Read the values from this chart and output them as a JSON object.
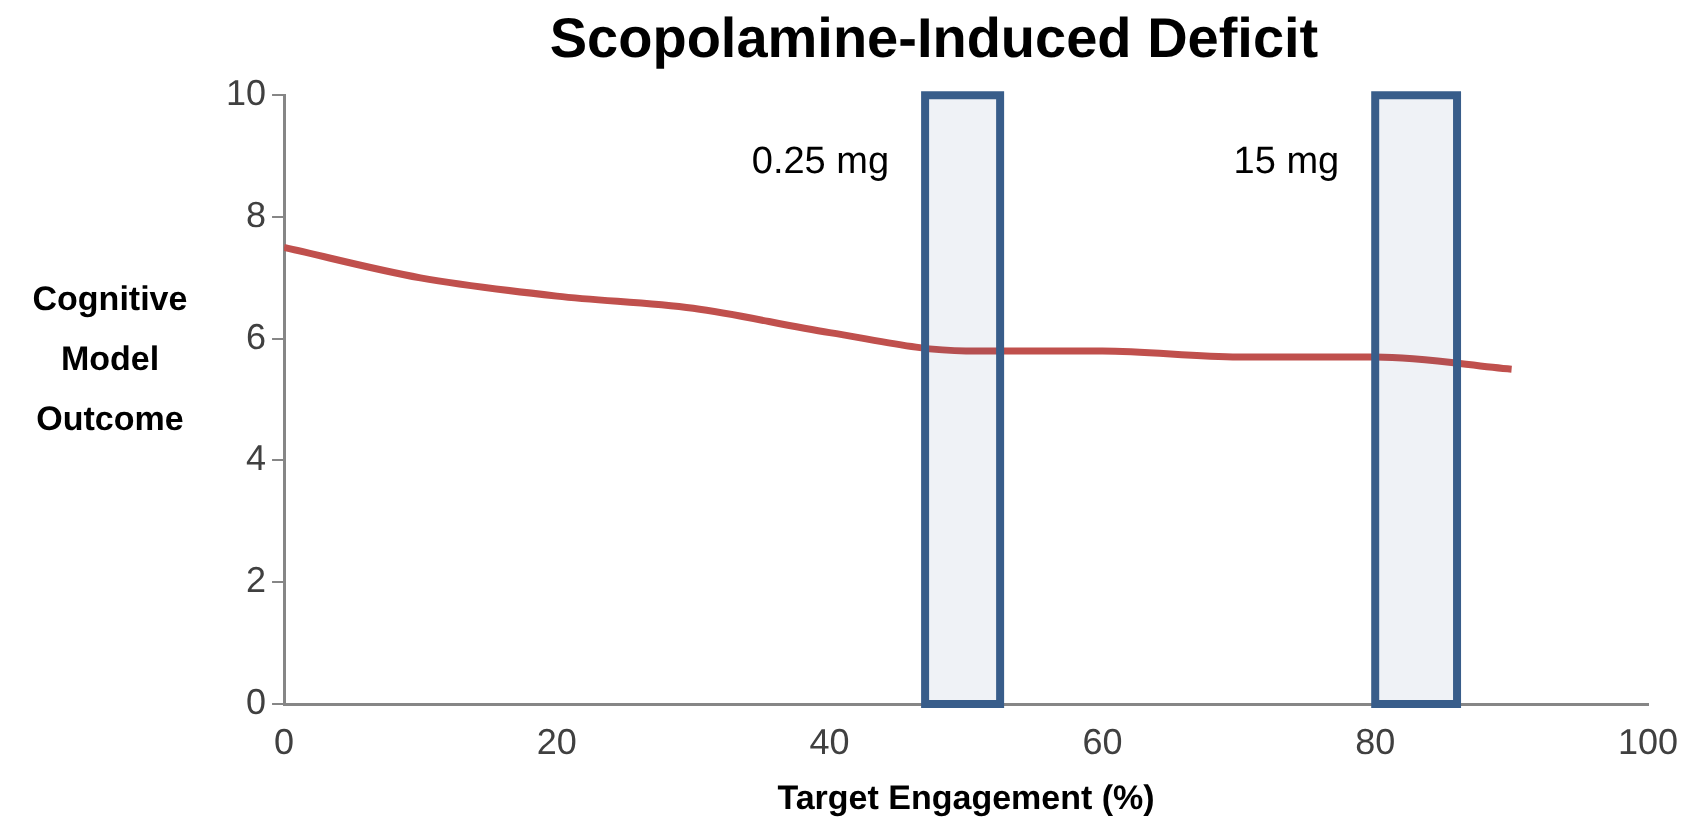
{
  "chart_data": {
    "type": "line",
    "title": "Scopolamine-Induced Deficit",
    "xlabel": "Target Engagement (%)",
    "ylabel": "Cognitive Model Outcome",
    "x": [
      0,
      10,
      20,
      30,
      40,
      50,
      60,
      70,
      80,
      90
    ],
    "series": [
      {
        "color": "#c0504d",
        "values": [
          7.5,
          7.0,
          6.7,
          6.5,
          6.1,
          5.8,
          5.8,
          5.7,
          5.7,
          5.5
        ]
      }
    ],
    "xlim": [
      0,
      100
    ],
    "xticks": [
      0,
      20,
      40,
      60,
      80,
      100
    ],
    "ylim": [
      0,
      10
    ],
    "yticks": [
      0,
      2,
      4,
      6,
      8,
      10
    ],
    "grid": false,
    "legend": false,
    "marker": "none",
    "line_style": "solid",
    "bands": [
      {
        "axis": "x",
        "from": 47,
        "to": 52.5,
        "label": "0.25 mg",
        "color": "#385d8a"
      },
      {
        "axis": "x",
        "from": 80,
        "to": 86,
        "label": "15 mg",
        "color": "#385d8a"
      }
    ]
  }
}
